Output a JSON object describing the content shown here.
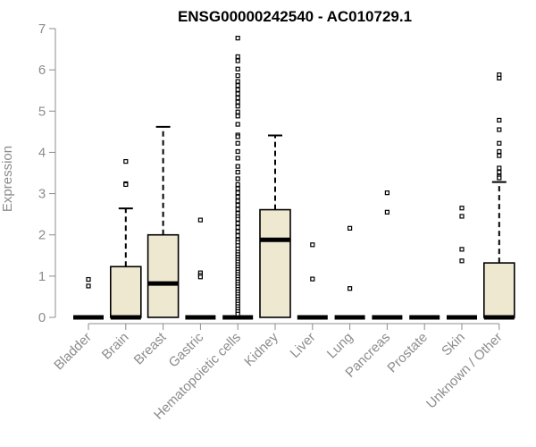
{
  "chart_data": {
    "type": "box",
    "title": "ENSG00000242540 - AC010729.1",
    "xlabel": "",
    "ylabel": "Expression",
    "ylim": [
      0,
      7
    ],
    "yticks": [
      0,
      1,
      2,
      3,
      4,
      5,
      6,
      7
    ],
    "grid": false,
    "colors": {
      "box_fill": "#efe8d0",
      "stroke": "#000000",
      "axis_text": "#8c8c8c"
    },
    "categories": [
      "Bladder",
      "Brain",
      "Breast",
      "Gastric",
      "Hematopoietic cells",
      "Kidney",
      "Liver",
      "Lung",
      "Pancreas",
      "Prostate",
      "Skin",
      "Unknown / Other"
    ],
    "boxes": [
      {
        "category": "Bladder",
        "min": 0,
        "q1": 0,
        "median": 0,
        "q3": 0,
        "max": 0,
        "outliers": [
          0.92,
          0.76
        ]
      },
      {
        "category": "Brain",
        "min": 0,
        "q1": 0,
        "median": 0,
        "q3": 1.23,
        "max": 2.64,
        "outliers": [
          3.78,
          3.24,
          3.22
        ]
      },
      {
        "category": "Breast",
        "min": 0,
        "q1": 0,
        "median": 0.82,
        "q3": 2.0,
        "max": 4.62,
        "outliers": []
      },
      {
        "category": "Gastric",
        "min": 0,
        "q1": 0,
        "median": 0,
        "q3": 0,
        "max": 0,
        "outliers": [
          2.36,
          1.08,
          1.02,
          0.98
        ]
      },
      {
        "category": "Hematopoietic cells",
        "min": 0,
        "q1": 0,
        "median": 0,
        "q3": 0,
        "max": 0,
        "outliers": [
          6.77,
          6.32,
          6.22,
          6.02,
          5.86,
          5.72,
          5.62,
          5.52,
          5.42,
          5.32,
          5.22,
          5.12,
          4.98,
          4.88,
          4.68,
          4.42,
          4.38,
          4.22,
          4.02,
          3.86,
          3.66,
          3.52,
          3.36,
          3.22,
          3.12,
          3.02,
          2.92,
          2.82,
          2.72,
          2.62,
          2.52,
          2.44,
          2.38,
          2.28,
          2.18,
          2.08,
          1.98,
          1.88,
          1.82,
          1.74,
          1.66,
          1.58,
          1.52,
          1.46,
          1.4,
          1.34,
          1.28,
          1.22,
          1.16,
          1.1,
          1.04,
          0.98,
          0.92,
          0.86,
          0.8,
          0.74,
          0.68,
          0.62,
          0.56,
          0.5,
          0.44,
          0.38,
          0.32,
          0.26,
          0.2,
          0.14,
          0.08
        ]
      },
      {
        "category": "Kidney",
        "min": 0,
        "q1": 0,
        "median": 1.88,
        "q3": 2.61,
        "max": 4.41,
        "outliers": []
      },
      {
        "category": "Liver",
        "min": 0,
        "q1": 0,
        "median": 0,
        "q3": 0,
        "max": 0,
        "outliers": [
          1.76,
          0.93
        ]
      },
      {
        "category": "Lung",
        "min": 0,
        "q1": 0,
        "median": 0,
        "q3": 0,
        "max": 0,
        "outliers": [
          2.16,
          0.7
        ]
      },
      {
        "category": "Pancreas",
        "min": 0,
        "q1": 0,
        "median": 0,
        "q3": 0,
        "max": 0,
        "outliers": [
          3.02,
          2.55
        ]
      },
      {
        "category": "Prostate",
        "min": 0,
        "q1": 0,
        "median": 0,
        "q3": 0,
        "max": 0,
        "outliers": []
      },
      {
        "category": "Skin",
        "min": 0,
        "q1": 0,
        "median": 0,
        "q3": 0,
        "max": 0,
        "outliers": [
          2.65,
          2.45,
          1.65,
          1.37
        ]
      },
      {
        "category": "Unknown / Other",
        "min": 0,
        "q1": 0,
        "median": 0,
        "q3": 1.32,
        "max": 3.28,
        "outliers": [
          5.88,
          5.8,
          4.78,
          4.55,
          4.22,
          4.02,
          3.92,
          3.62,
          3.52,
          3.42,
          3.38
        ]
      }
    ]
  }
}
